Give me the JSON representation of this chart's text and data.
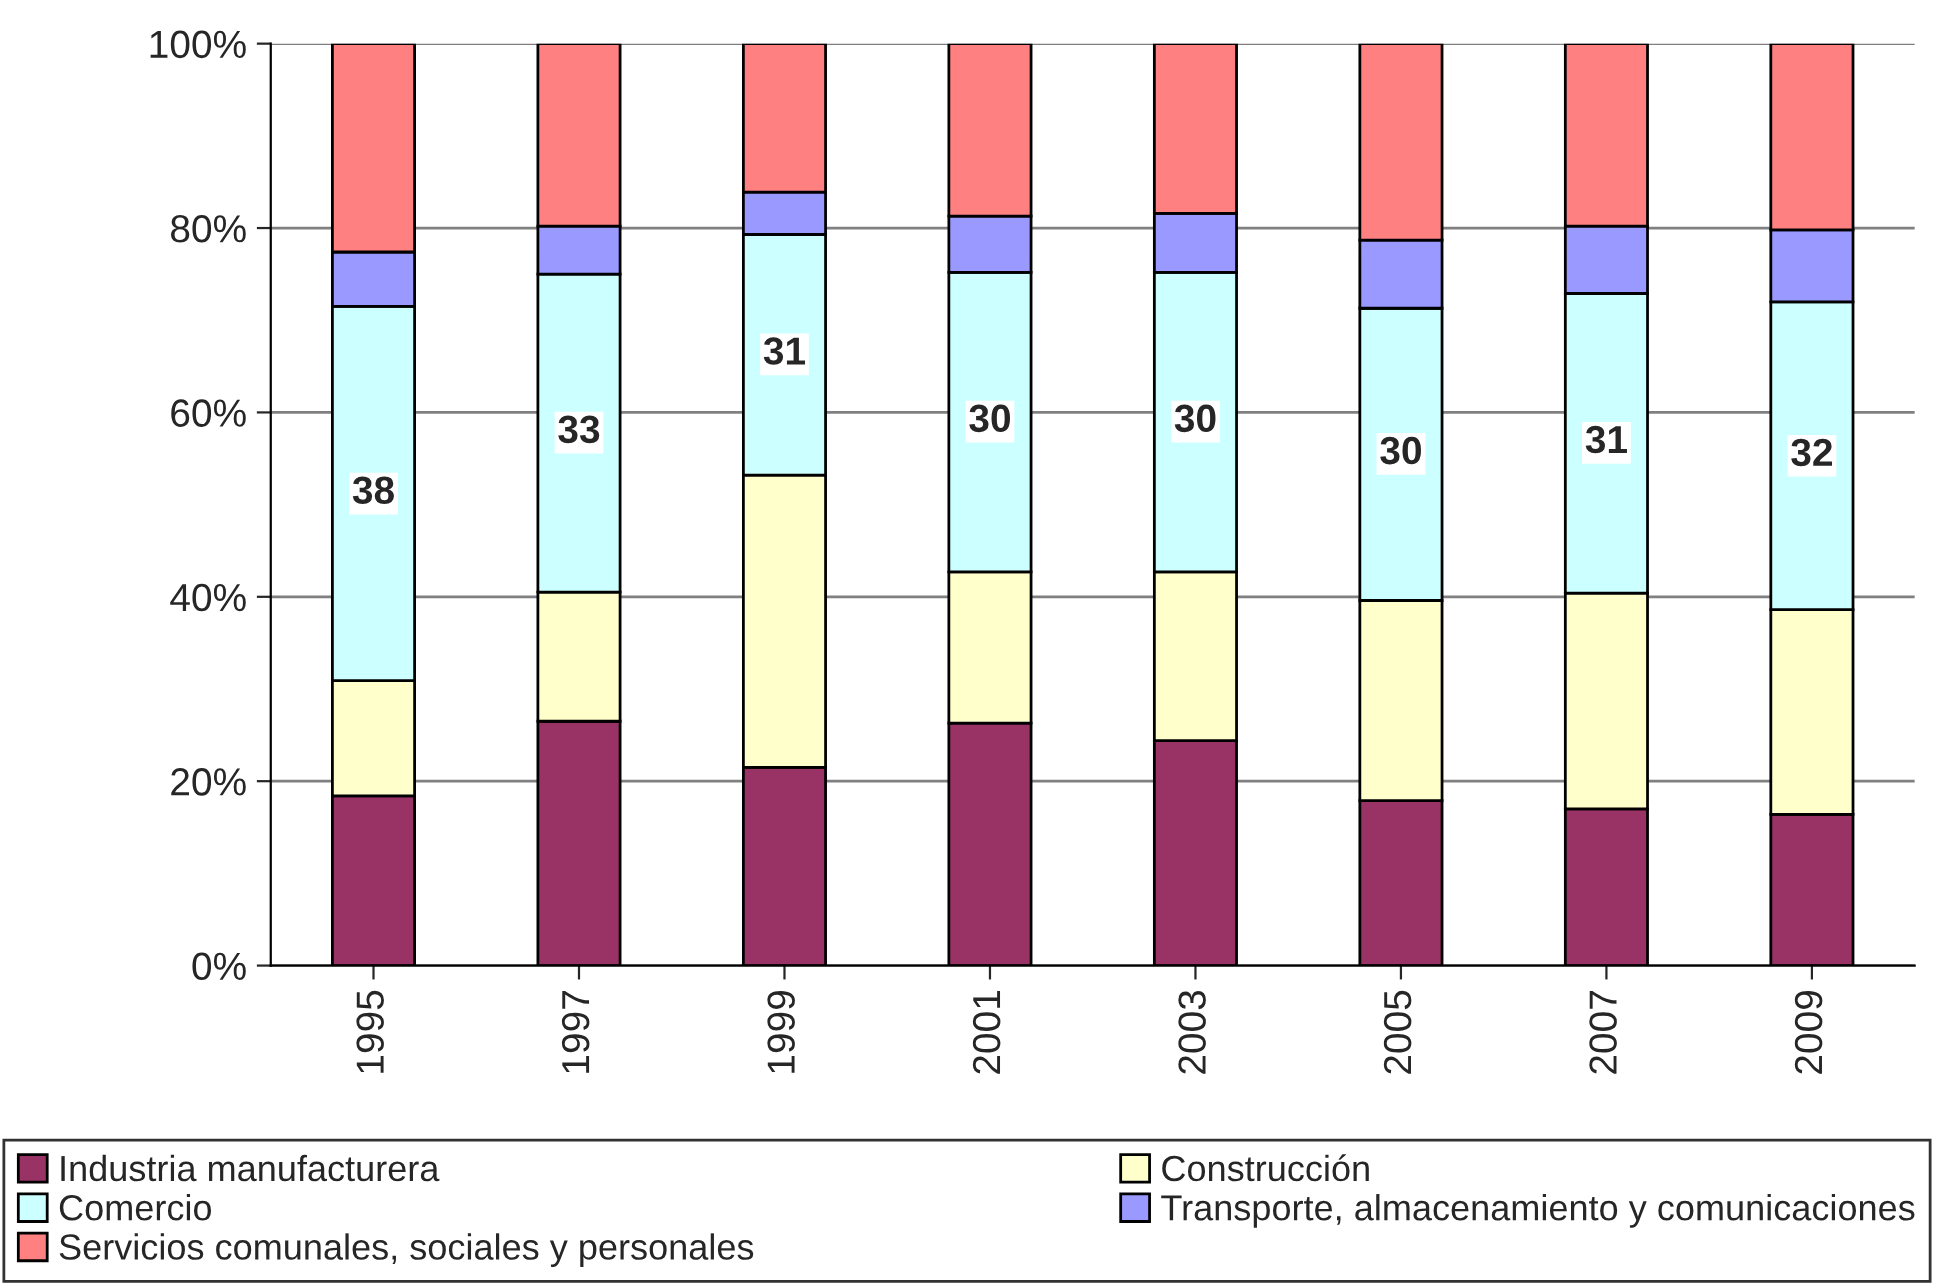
{
  "chart_data": {
    "type": "bar",
    "stacked": true,
    "categories": [
      "1995",
      "1997",
      "1999",
      "2001",
      "2003",
      "2005",
      "2007",
      "2009"
    ],
    "series": [
      {
        "name": "Industria manufacturera",
        "color": "#993366",
        "values": [
          18.4,
          26.5,
          21.5,
          26.3,
          24.4,
          17.9,
          17.0,
          16.4
        ]
      },
      {
        "name": "Construcción",
        "color": "#ffffcc",
        "values": [
          12.5,
          14.0,
          31.7,
          16.4,
          18.3,
          21.7,
          23.4,
          22.2
        ]
      },
      {
        "name": "Comercio",
        "color": "#ccffff",
        "values": [
          40.6,
          34.5,
          26.1,
          32.5,
          32.5,
          31.7,
          32.5,
          33.4
        ]
      },
      {
        "name": "Transporte, almacenamiento y comunicaciones",
        "color": "#9999ff",
        "values": [
          5.9,
          5.2,
          4.6,
          6.1,
          6.4,
          7.4,
          7.3,
          7.8
        ]
      },
      {
        "name": "Servicios comunales, sociales y personales",
        "color": "#ff8080",
        "values": [
          22.6,
          19.8,
          16.1,
          18.7,
          18.4,
          21.3,
          19.8,
          20.2
        ]
      }
    ],
    "ylim": [
      0,
      100
    ],
    "yticks": [
      {
        "value": 0,
        "label": "0%"
      },
      {
        "value": 20,
        "label": "20%"
      },
      {
        "value": 40,
        "label": "40%"
      },
      {
        "value": 60,
        "label": "60%"
      },
      {
        "value": 80,
        "label": "80%"
      },
      {
        "value": 100,
        "label": "100%"
      }
    ],
    "annotations": [
      {
        "text": "38",
        "x": "1995",
        "y": 51.2
      },
      {
        "text": "33",
        "x": "1997",
        "y": 57.8
      },
      {
        "text": "31",
        "x": "1999",
        "y": 66.3
      },
      {
        "text": "30",
        "x": "2001",
        "y": 59.0
      },
      {
        "text": "30",
        "x": "2003",
        "y": 59.0
      },
      {
        "text": "30",
        "x": "2005",
        "y": 55.5
      },
      {
        "text": "31",
        "x": "2007",
        "y": 56.7
      },
      {
        "text": "32",
        "x": "2009",
        "y": 55.3
      }
    ],
    "grid": "y",
    "legend": "bottom"
  }
}
